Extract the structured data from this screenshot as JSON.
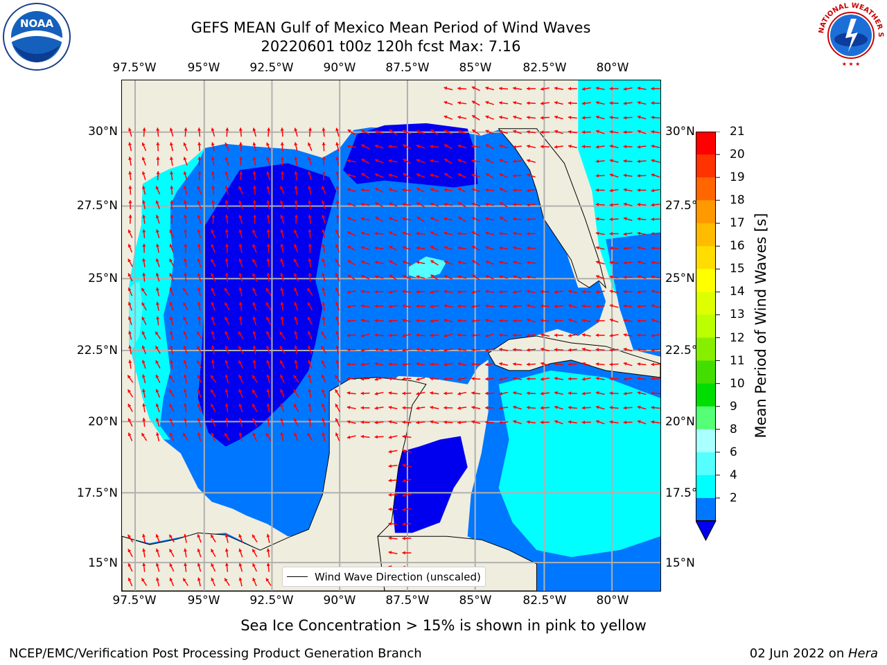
{
  "header": {
    "title_line1": "GEFS MEAN Gulf of Mexico Mean Period of Wind Waves",
    "title_line2": "20220601 t00z 120h fcst   Max: 7.16"
  },
  "logos": {
    "left": "NOAA",
    "left_ring_text": "NATIONAL OCEANIC AND ATMOSPHERIC ADMINISTRATION · U.S. DEPARTMENT OF COMMERCE",
    "right_ring_text": "NATIONAL WEATHER SERVICE"
  },
  "map": {
    "lon_labels": [
      "97.5°W",
      "95°W",
      "92.5°W",
      "90°W",
      "87.5°W",
      "85°W",
      "82.5°W",
      "80°W"
    ],
    "lat_labels_left": [
      "30°N",
      "27.5°N",
      "25°N",
      "22.5°N",
      "20°N",
      "17.5°N",
      "15°N"
    ],
    "lat_labels_right": [
      "30°N",
      "27.5°N",
      "25°N",
      "22.5°N",
      "20°N",
      "17.5°N",
      "15°N"
    ],
    "land_color": "#efedde",
    "arrow_color": "#ff0000",
    "legend_label": "Wind Wave Direction (unscaled)"
  },
  "colorbar": {
    "label": "Mean Period of Wind Waves [s]",
    "ticks": [
      "21",
      "20",
      "19",
      "18",
      "17",
      "16",
      "15",
      "14",
      "13",
      "12",
      "11",
      "10",
      "9",
      "8",
      "6",
      "4",
      "2"
    ],
    "colors": [
      "#ff0000",
      "#ff3300",
      "#ff6600",
      "#ff9900",
      "#ffbb00",
      "#ffdd00",
      "#ffff00",
      "#ddff00",
      "#bbff00",
      "#88ee00",
      "#44dd00",
      "#00dd00",
      "#55ff77",
      "#aaffff",
      "#55ffff",
      "#00ffff",
      "#0077ff"
    ],
    "extend_color": "#0000ee"
  },
  "footer": {
    "note": "Sea Ice Concentration > 15% is shown in pink to yellow",
    "credit": "NCEP/EMC/Verification Post Processing Product Generation Branch",
    "date": "02 Jun 2022 on ",
    "host": "Hera"
  }
}
